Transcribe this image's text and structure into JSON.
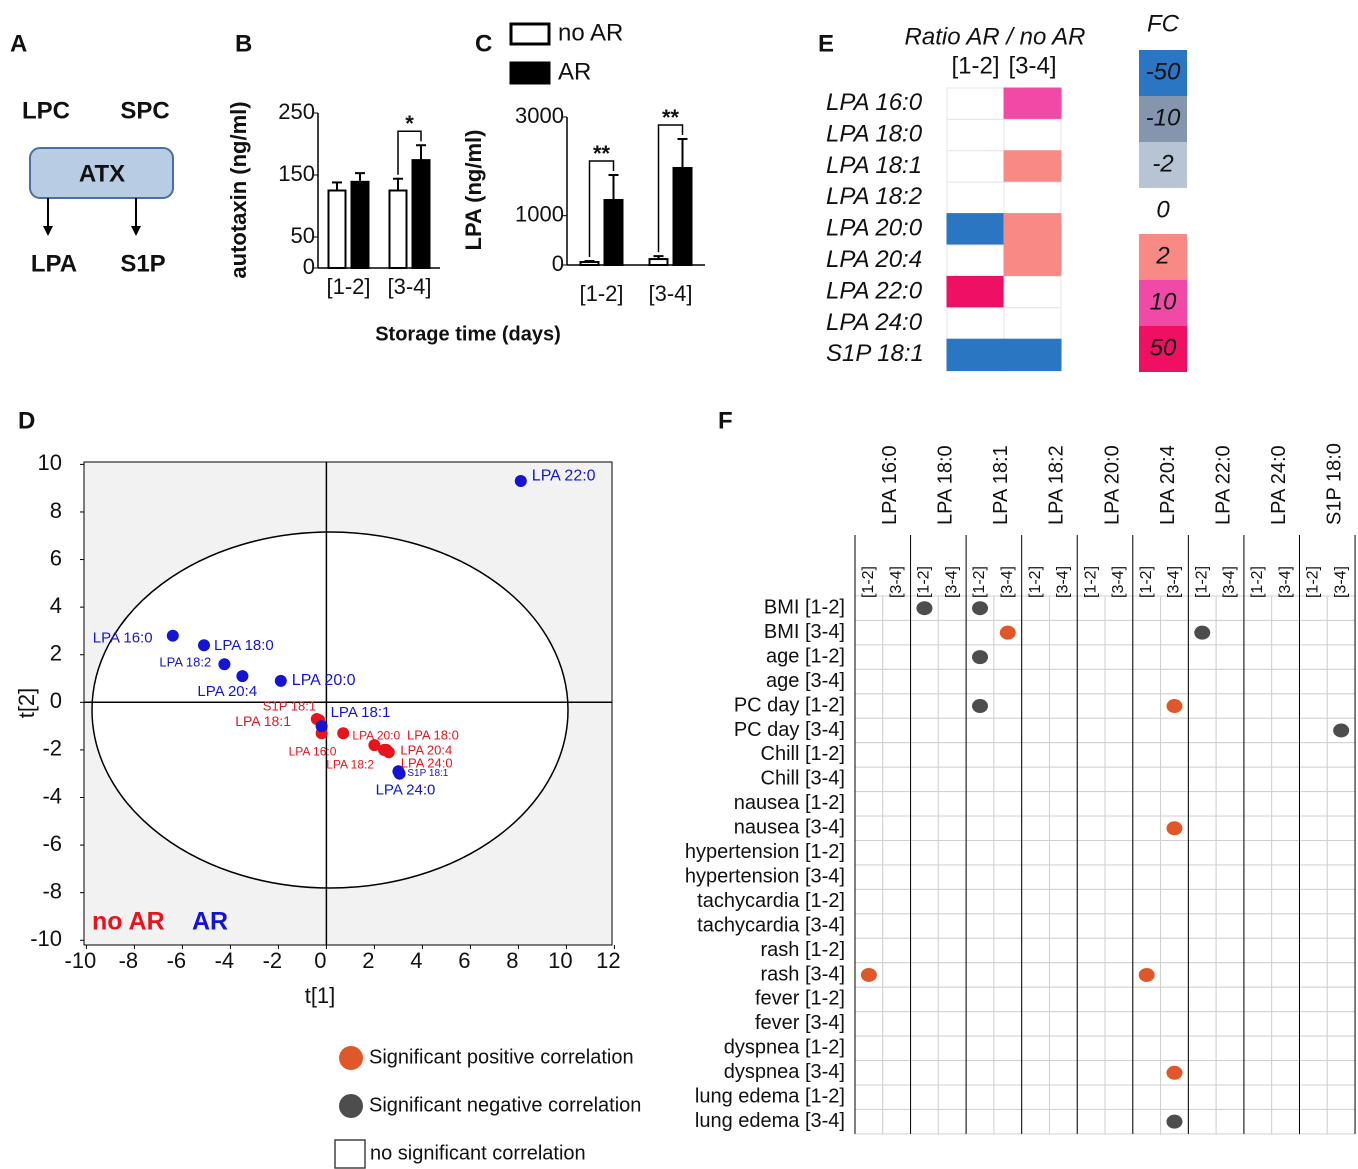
{
  "diagram": {
    "label": "A",
    "inputs": [
      "LPC",
      "SPC"
    ],
    "enzyme": "ATX",
    "outputs": [
      "LPA",
      "S1P"
    ]
  },
  "chart_data": [
    {
      "type": "bar",
      "label": "B",
      "ylabel": "autotaxin (ng/ml)",
      "xlabel": "Storage time (days)",
      "categories": [
        "[1-2]",
        "[3-4]"
      ],
      "series": [
        {
          "color": "#ffffff",
          "values": [
            125,
            125
          ],
          "errors": [
            13,
            19
          ]
        },
        {
          "color": "#000000",
          "values": [
            139,
            174
          ],
          "errors": [
            14,
            24
          ]
        }
      ],
      "significance": [
        null,
        "*"
      ],
      "ylim": [
        0,
        250
      ],
      "yticks": [
        0,
        50,
        150,
        250
      ]
    },
    {
      "type": "bar",
      "label": "C",
      "ylabel": "LPA (ng/ml)",
      "categories": [
        "[1-2]",
        "[3-4]"
      ],
      "series": [
        {
          "name": "no AR",
          "color": "#ffffff",
          "values": [
            60,
            120
          ],
          "errors": [
            20,
            60
          ]
        },
        {
          "name": "AR",
          "color": "#000000",
          "values": [
            1318,
            1966
          ],
          "errors": [
            506,
            588
          ]
        }
      ],
      "significance": [
        "**",
        "**"
      ],
      "ylim": [
        0,
        3000
      ],
      "yticks": [
        0,
        1000,
        3000
      ],
      "legend": "top"
    },
    {
      "type": "scatter",
      "label": "D",
      "xlabel": "t[1]",
      "ylabel": "t[2]",
      "xlim": [
        -10.1,
        11.9
      ],
      "ylim": [
        -10.2,
        10.1
      ],
      "xticks": [
        -10,
        -8,
        -6,
        -4,
        -2,
        0,
        2,
        4,
        6,
        8,
        10,
        12
      ],
      "yticks": [
        -10,
        -8,
        -6,
        -4,
        -2,
        0,
        2,
        4,
        6,
        8,
        10
      ],
      "series": [
        {
          "name": "no AR",
          "color": "#e8141c",
          "labels": [
            "S1P 18:1",
            "LPA 18:1",
            "LPA 16:0",
            "LPA 18:2",
            "LPA 20:0",
            "LPA 18:0",
            "LPA 20:4",
            "LPA 24:0"
          ],
          "x": [
            -0.4,
            -0.3,
            -0.2,
            0.7,
            2.0,
            2.4,
            2.5,
            2.6
          ],
          "values": [
            -0.7,
            -0.75,
            -1.3,
            -1.3,
            -1.8,
            -2.0,
            -2.0,
            -2.1
          ]
        },
        {
          "name": "AR",
          "color": "#1414d2",
          "labels": [
            "LPA 22:0",
            "LPA 16:0",
            "LPA 18:0",
            "LPA 18:2",
            "LPA 20:4",
            "LPA 20:0",
            "LPA 18:1",
            "S1P 18:1",
            "LPA 24:0"
          ],
          "x": [
            8.1,
            -6.4,
            -5.1,
            -4.25,
            -3.5,
            -1.9,
            -0.2,
            3.0,
            3.05
          ],
          "values": [
            9.3,
            2.8,
            2.4,
            1.6,
            1.1,
            0.9,
            -1.0,
            -2.9,
            -3.0
          ]
        }
      ],
      "legend": "lower left"
    },
    {
      "type": "heatmap",
      "label": "E",
      "title": "Ratio AR / no AR",
      "columns": [
        "[1-2]",
        "[3-4]"
      ],
      "rows": [
        "LPA 16:0",
        "LPA 18:0",
        "LPA 18:1",
        "LPA 18:2",
        "LPA 20:0",
        "LPA 20:4",
        "LPA 22:0",
        "LPA 24:0",
        "S1P 18:1"
      ],
      "values": [
        [
          0,
          10
        ],
        [
          0,
          0
        ],
        [
          0,
          2
        ],
        [
          0,
          0
        ],
        [
          -50,
          2
        ],
        [
          0,
          2
        ],
        [
          50,
          0
        ],
        [
          0,
          0
        ],
        [
          -50,
          -50
        ]
      ],
      "legend_title": "FC",
      "levels": [
        -50,
        -10,
        -2,
        0,
        2,
        10,
        50
      ],
      "colors": [
        "#2a76c2",
        "#8595ae",
        "#b7c4d6",
        "#ffffff",
        "#f88985",
        "#f14aa6",
        "#ef0f63"
      ]
    },
    {
      "type": "dotmatrix",
      "label": "F",
      "columns": [
        "LPA 16:0",
        "LPA 18:0",
        "LPA 18:1",
        "LPA 18:2",
        "LPA 20:0",
        "LPA 20:4",
        "LPA 22:0",
        "LPA 24:0",
        "S1P 18:0"
      ],
      "subcolumns": [
        "[1-2]",
        "[3-4]"
      ],
      "rows": [
        "BMI [1-2]",
        "BMI [3-4]",
        "age [1-2]",
        "age [3-4]",
        "PC day  [1-2]",
        "PC day [3-4]",
        "Chill [1-2]",
        "Chill [3-4]",
        "nausea [1-2]",
        "nausea [3-4]",
        "hypertension [1-2]",
        "hypertension [3-4]",
        "tachycardia [1-2]",
        "tachycardia [3-4]",
        "rash [1-2]",
        "rash [3-4]",
        "fever [1-2]",
        "fever [3-4]",
        "dyspnea [1-2]",
        "dyspnea [3-4]",
        "lung edema [1-2]",
        "lung edema [3-4]"
      ],
      "values": [
        [
          0,
          0,
          -1,
          0,
          -1,
          0,
          0,
          0,
          0,
          0,
          0,
          0,
          0,
          0,
          0,
          0,
          0,
          0
        ],
        [
          0,
          0,
          0,
          0,
          0,
          1,
          0,
          0,
          0,
          0,
          0,
          0,
          -1,
          0,
          0,
          0,
          0,
          0
        ],
        [
          0,
          0,
          0,
          0,
          -1,
          0,
          0,
          0,
          0,
          0,
          0,
          0,
          0,
          0,
          0,
          0,
          0,
          0
        ],
        [
          0,
          0,
          0,
          0,
          0,
          0,
          0,
          0,
          0,
          0,
          0,
          0,
          0,
          0,
          0,
          0,
          0,
          0
        ],
        [
          0,
          0,
          0,
          0,
          -1,
          0,
          0,
          0,
          0,
          0,
          0,
          1,
          0,
          0,
          0,
          0,
          0,
          0
        ],
        [
          0,
          0,
          0,
          0,
          0,
          0,
          0,
          0,
          0,
          0,
          0,
          0,
          0,
          0,
          0,
          0,
          0,
          -1
        ],
        [
          0,
          0,
          0,
          0,
          0,
          0,
          0,
          0,
          0,
          0,
          0,
          0,
          0,
          0,
          0,
          0,
          0,
          0
        ],
        [
          0,
          0,
          0,
          0,
          0,
          0,
          0,
          0,
          0,
          0,
          0,
          0,
          0,
          0,
          0,
          0,
          0,
          0
        ],
        [
          0,
          0,
          0,
          0,
          0,
          0,
          0,
          0,
          0,
          0,
          0,
          0,
          0,
          0,
          0,
          0,
          0,
          0
        ],
        [
          0,
          0,
          0,
          0,
          0,
          0,
          0,
          0,
          0,
          0,
          0,
          1,
          0,
          0,
          0,
          0,
          0,
          0
        ],
        [
          0,
          0,
          0,
          0,
          0,
          0,
          0,
          0,
          0,
          0,
          0,
          0,
          0,
          0,
          0,
          0,
          0,
          0
        ],
        [
          0,
          0,
          0,
          0,
          0,
          0,
          0,
          0,
          0,
          0,
          0,
          0,
          0,
          0,
          0,
          0,
          0,
          0
        ],
        [
          0,
          0,
          0,
          0,
          0,
          0,
          0,
          0,
          0,
          0,
          0,
          0,
          0,
          0,
          0,
          0,
          0,
          0
        ],
        [
          0,
          0,
          0,
          0,
          0,
          0,
          0,
          0,
          0,
          0,
          0,
          0,
          0,
          0,
          0,
          0,
          0,
          0
        ],
        [
          0,
          0,
          0,
          0,
          0,
          0,
          0,
          0,
          0,
          0,
          0,
          0,
          0,
          0,
          0,
          0,
          0,
          0
        ],
        [
          1,
          0,
          0,
          0,
          0,
          0,
          0,
          0,
          0,
          0,
          1,
          0,
          0,
          0,
          0,
          0,
          0,
          0
        ],
        [
          0,
          0,
          0,
          0,
          0,
          0,
          0,
          0,
          0,
          0,
          0,
          0,
          0,
          0,
          0,
          0,
          0,
          0
        ],
        [
          0,
          0,
          0,
          0,
          0,
          0,
          0,
          0,
          0,
          0,
          0,
          0,
          0,
          0,
          0,
          0,
          0,
          0
        ],
        [
          0,
          0,
          0,
          0,
          0,
          0,
          0,
          0,
          0,
          0,
          0,
          0,
          0,
          0,
          0,
          0,
          0,
          0
        ],
        [
          0,
          0,
          0,
          0,
          0,
          0,
          0,
          0,
          0,
          0,
          0,
          1,
          0,
          0,
          0,
          0,
          0,
          0
        ],
        [
          0,
          0,
          0,
          0,
          0,
          0,
          0,
          0,
          0,
          0,
          0,
          0,
          0,
          0,
          0,
          0,
          0,
          0
        ],
        [
          0,
          0,
          0,
          0,
          0,
          0,
          0,
          0,
          0,
          0,
          0,
          -1,
          0,
          0,
          0,
          0,
          0,
          0
        ]
      ],
      "legend": [
        {
          "label": "Significant positive correlation",
          "value": 1,
          "color": "#e0582a"
        },
        {
          "label": "Significant negative correlation",
          "value": -1,
          "color": "#4d4d4d"
        },
        {
          "label": "no significant correlation",
          "value": 0,
          "color": "#ffffff"
        }
      ]
    }
  ]
}
